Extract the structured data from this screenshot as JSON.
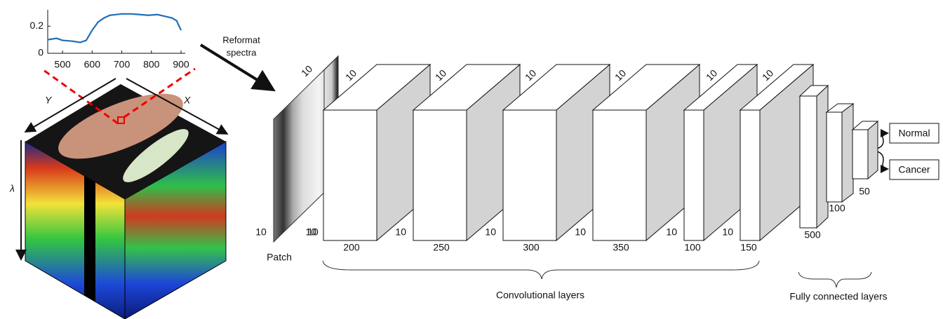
{
  "spectrum": {
    "type": "line",
    "x": [
      450,
      480,
      500,
      530,
      560,
      580,
      600,
      620,
      640,
      660,
      680,
      700,
      730,
      760,
      790,
      820,
      850,
      870,
      885,
      900
    ],
    "values": [
      0.1,
      0.11,
      0.095,
      0.09,
      0.08,
      0.095,
      0.17,
      0.23,
      0.26,
      0.28,
      0.285,
      0.29,
      0.29,
      0.285,
      0.28,
      0.285,
      0.27,
      0.26,
      0.24,
      0.17
    ],
    "color": "#1f6fb5",
    "xlim": [
      450,
      900
    ],
    "ylim": [
      0,
      0.32
    ],
    "xticks": [
      500,
      600,
      700,
      800,
      900
    ],
    "yticks": [
      0,
      0.2
    ]
  },
  "cube": {
    "y_axis": "Y",
    "x_axis": "X",
    "wavelength_axis": "λ"
  },
  "reformat_label": [
    "Reformat",
    "spectra"
  ],
  "patch": {
    "label": "Patch",
    "depth": 10,
    "height": 10,
    "width": 10
  },
  "conv_layers": {
    "label": "Convolutional layers",
    "layers": [
      {
        "depth": 10,
        "height": 10,
        "filters": 200
      },
      {
        "depth": 10,
        "height": 10,
        "filters": 250
      },
      {
        "depth": 10,
        "height": 10,
        "filters": 300
      },
      {
        "depth": 10,
        "height": 10,
        "filters": 350
      },
      {
        "depth": 10,
        "height": 10,
        "filters": 100
      },
      {
        "depth": 10,
        "height": 10,
        "filters": 150
      }
    ]
  },
  "fc_layers": {
    "label": "Fully connected layers",
    "layers": [
      500,
      100,
      50
    ]
  },
  "outputs": [
    "Normal",
    "Cancer"
  ]
}
